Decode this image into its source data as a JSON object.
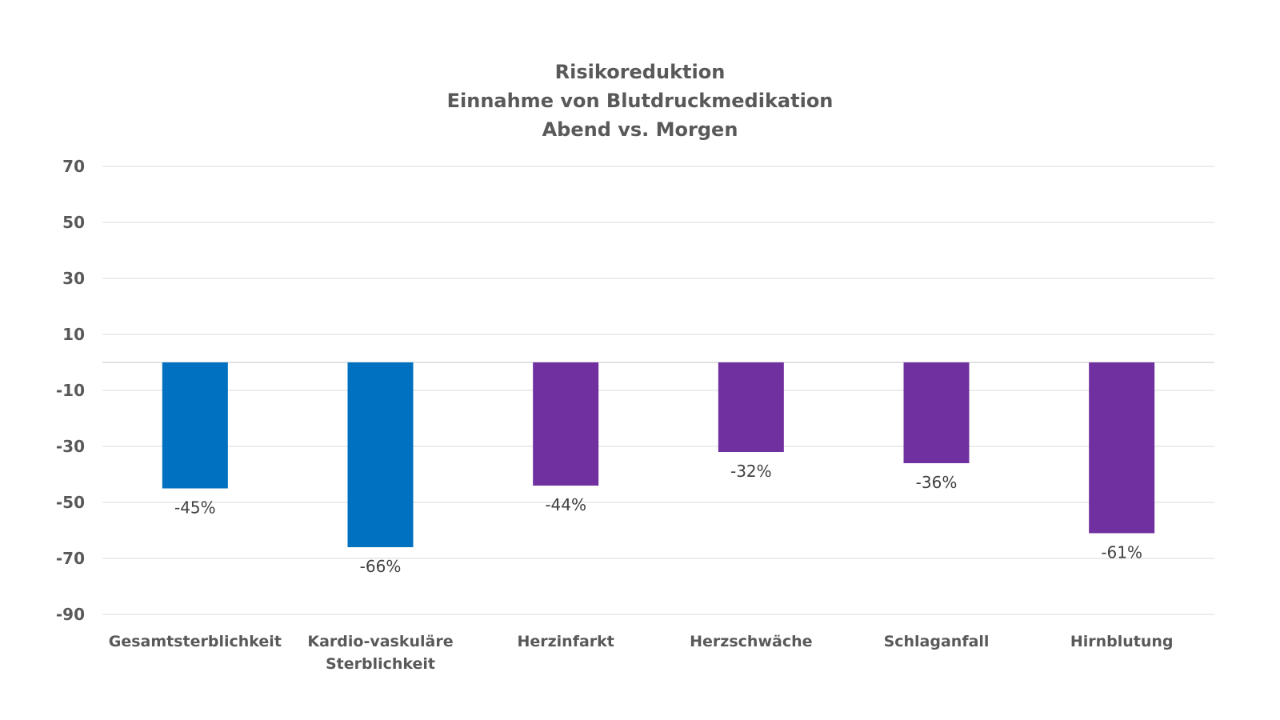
{
  "chart_data": {
    "type": "bar",
    "title_lines": [
      "Risikoreduktion",
      "Einnahme von Blutdruckmedikation",
      "Abend vs. Morgen"
    ],
    "categories": [
      [
        "Gesamtsterblichkeit"
      ],
      [
        "Kardio-vaskuläre",
        "Sterblichkeit"
      ],
      [
        "Herzinfarkt"
      ],
      [
        "Herzschwäche"
      ],
      [
        "Schlaganfall"
      ],
      [
        "Hirnblutung"
      ]
    ],
    "values": [
      -45,
      -66,
      -44,
      -32,
      -36,
      -61
    ],
    "data_labels": [
      "-45%",
      "-66%",
      "-44%",
      "-32%",
      "-36%",
      "-61%"
    ],
    "bar_colors": [
      "#0070C0",
      "#0070C0",
      "#7030A0",
      "#7030A0",
      "#7030A0",
      "#7030A0"
    ],
    "yticks": [
      70,
      50,
      30,
      10,
      -10,
      -30,
      -50,
      -70,
      -90
    ],
    "ylim": [
      -90,
      70
    ],
    "grid": true,
    "xlabel": "",
    "ylabel": ""
  },
  "colors": {
    "grid": "#D9D9D9",
    "axis_text": "#595959",
    "label_text": "#404040"
  }
}
